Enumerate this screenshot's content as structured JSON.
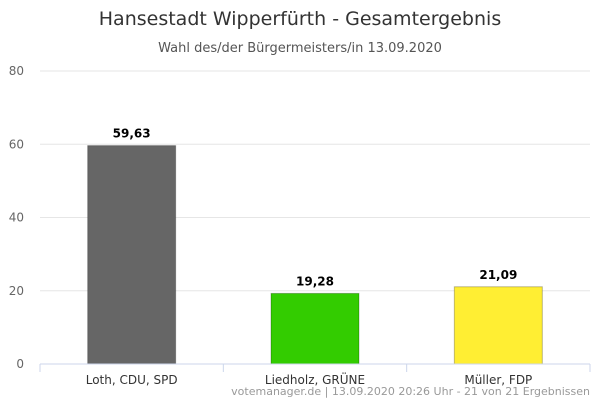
{
  "chart_data": {
    "type": "bar",
    "title": "Hansestadt Wipperfürth - Gesamtergebnis",
    "subtitle": "Wahl des/der Bürgermeisters/in 13.09.2020",
    "categories": [
      "Loth, CDU, SPD",
      "Liedholz, GRÜNE",
      "Müller, FDP"
    ],
    "values": [
      59.63,
      19.28,
      21.09
    ],
    "data_labels": [
      "59,63",
      "19,28",
      "21,09"
    ],
    "colors": [
      "#666666",
      "#33cc00",
      "#ffee33"
    ],
    "ylim": [
      0,
      80
    ],
    "yticks": [
      0,
      20,
      40,
      60,
      80
    ],
    "ytick_labels": [
      "0",
      "20",
      "40",
      "60",
      "80"
    ],
    "grid": true,
    "legend": "none"
  },
  "credits": "votemanager.de | 13.09.2020 20:26 Uhr - 21 von 21 Ergebnissen"
}
